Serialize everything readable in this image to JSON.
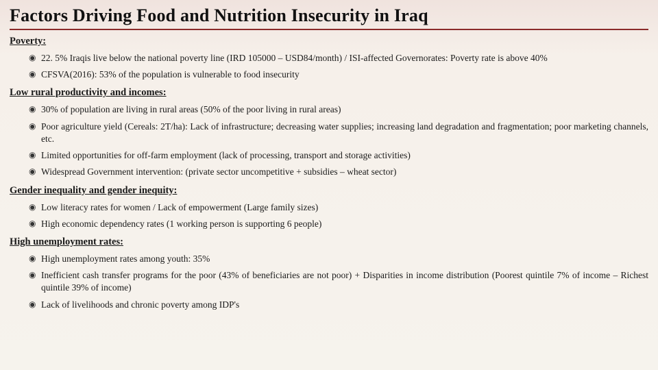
{
  "slide": {
    "title": "Factors Driving Food and Nutrition Insecurity in Iraq",
    "background_gradient": [
      "#f0e3de",
      "#f6f0ea",
      "#f6f3ed"
    ],
    "title_underline_color": "#8a2a2a",
    "title_fontsize": 26,
    "body_fontsize": 13.5,
    "section_fontsize": 14.5,
    "bullet_glyph": "◉",
    "font_family": "Georgia, serif",
    "sections": [
      {
        "heading": "Poverty:",
        "items": [
          "22. 5% Iraqis live below the national poverty line (IRD 105000 – USD84/month) / ISI-affected Governorates: Poverty rate is above 40%",
          "CFSVA(2016): 53% of the population is vulnerable to food insecurity"
        ]
      },
      {
        "heading": "Low rural productivity and incomes:",
        "items": [
          "30% of population are living in rural areas (50% of the poor living in rural areas)",
          "Poor agriculture yield (Cereals: 2T/ha): Lack of infrastructure; decreasing water supplies; increasing land degradation and fragmentation; poor marketing channels, etc.",
          "Limited opportunities for off-farm employment (lack of processing, transport and storage activities)",
          "Widespread Government intervention: (private sector uncompetitive + subsidies – wheat sector)"
        ]
      },
      {
        "heading": "Gender inequality and gender inequity:",
        "items": [
          "Low literacy rates for women / Lack of empowerment (Large family sizes)",
          "High economic dependency rates (1 working person is supporting 6 people)"
        ]
      },
      {
        "heading": "High unemployment rates:",
        "items": [
          "High unemployment rates among youth: 35%",
          "Inefficient cash transfer programs for the poor (43% of beneficiaries are not poor) + Disparities in income distribution (Poorest quintile 7% of income – Richest quintile 39% of income)",
          "Lack of livelihoods and chronic poverty among IDP's"
        ]
      }
    ]
  }
}
